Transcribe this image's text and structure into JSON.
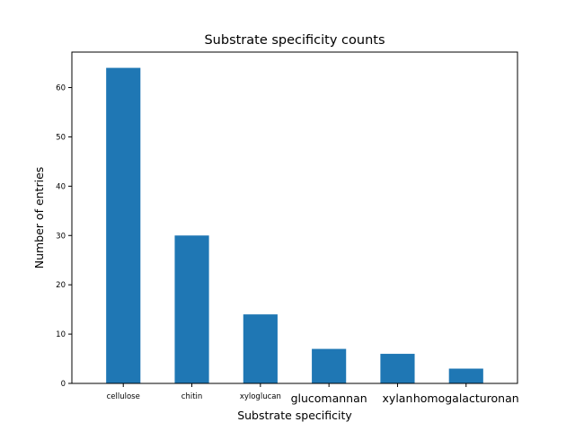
{
  "chart_data": {
    "type": "bar",
    "title": "Substrate specificity counts",
    "xlabel": "Substrate specificity",
    "ylabel": "Number of entries",
    "categories": [
      "cellulose",
      "chitin",
      "xyloglucan",
      "glucomannan",
      "xylan",
      "homogalacturonan"
    ],
    "values": [
      64,
      30,
      14,
      7,
      6,
      3
    ],
    "ylim": [
      0,
      67.2
    ],
    "yticks": [
      0,
      10,
      20,
      30,
      40,
      50,
      60
    ],
    "bar_color": "#1f77b4",
    "grid": false,
    "legend": "none"
  }
}
